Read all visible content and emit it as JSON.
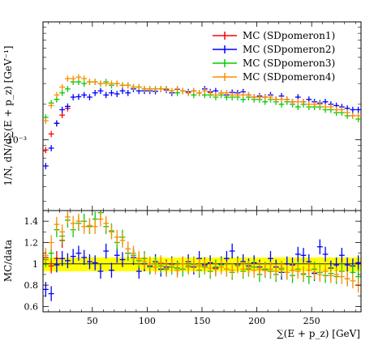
{
  "chart_data": [
    {
      "type": "scatter",
      "panel": "main",
      "ylabel": "1/N, dN/d∑(E + p_z) [GeV⁻¹]",
      "xlim": [
        5,
        295
      ],
      "ylim_decades": [
        -3.6,
        -2.0
      ],
      "yscale": "log",
      "y_tick_labels": [
        {
          "value": 0.001,
          "text": "10⁻³"
        }
      ],
      "legend_position": "top-right",
      "series": [
        {
          "name": "MC (SDpomeron1)",
          "color": "#ff0000",
          "x": [
            7.5,
            12.5,
            17.5,
            22.5,
            27.5
          ],
          "values": [
            0.00082,
            0.00112,
            0.00138,
            0.00162,
            0.00185
          ]
        },
        {
          "name": "MC (SDpomeron2)",
          "color": "#0000ff",
          "x": [
            7.5,
            12.5,
            17.5,
            22.5,
            27.5,
            32.5,
            37.5,
            42.5,
            47.5,
            52.5,
            57.5,
            62.5,
            67.5,
            72.5,
            77.5,
            82.5,
            87.5,
            92.5,
            97.5,
            102.5,
            107.5,
            112.5,
            117.5,
            122.5,
            127.5,
            132.5,
            137.5,
            142.5,
            147.5,
            152.5,
            157.5,
            162.5,
            167.5,
            172.5,
            177.5,
            182.5,
            187.5,
            192.5,
            197.5,
            202.5,
            207.5,
            212.5,
            217.5,
            222.5,
            227.5,
            232.5,
            237.5,
            242.5,
            247.5,
            252.5,
            257.5,
            262.5,
            267.5,
            272.5,
            277.5,
            282.5,
            287.5,
            292.5
          ],
          "values": [
            0.0006,
            0.00085,
            0.00138,
            0.0018,
            0.00192,
            0.0023,
            0.00232,
            0.0024,
            0.0023,
            0.0025,
            0.0026,
            0.0024,
            0.0025,
            0.00245,
            0.0026,
            0.0025,
            0.0027,
            0.0026,
            0.0026,
            0.0026,
            0.00258,
            0.0027,
            0.00265,
            0.0025,
            0.00268,
            0.0026,
            0.00255,
            0.0026,
            0.0025,
            0.0027,
            0.00255,
            0.0026,
            0.0025,
            0.0024,
            0.00252,
            0.0025,
            0.00255,
            0.0024,
            0.0023,
            0.00235,
            0.0023,
            0.0024,
            0.0022,
            0.00235,
            0.0022,
            0.0021,
            0.0023,
            0.0021,
            0.0022,
            0.0021,
            0.00205,
            0.0021,
            0.002,
            0.00195,
            0.0019,
            0.00185,
            0.0018,
            0.0018
          ]
        },
        {
          "name": "MC (SDpomeron3)",
          "color": "#00cc00",
          "x": [
            7.5,
            12.5,
            17.5,
            22.5,
            27.5,
            32.5,
            37.5,
            42.5,
            47.5,
            52.5,
            57.5,
            62.5,
            67.5,
            72.5,
            77.5,
            82.5,
            87.5,
            92.5,
            97.5,
            102.5,
            107.5,
            112.5,
            117.5,
            122.5,
            127.5,
            132.5,
            137.5,
            142.5,
            147.5,
            152.5,
            157.5,
            162.5,
            167.5,
            172.5,
            177.5,
            182.5,
            187.5,
            192.5,
            197.5,
            202.5,
            207.5,
            212.5,
            217.5,
            222.5,
            227.5,
            232.5,
            237.5,
            242.5,
            247.5,
            252.5,
            257.5,
            262.5,
            267.5,
            272.5,
            277.5,
            282.5,
            287.5,
            292.5
          ],
          "values": [
            0.00155,
            0.00205,
            0.0022,
            0.0025,
            0.0027,
            0.0031,
            0.0031,
            0.003,
            0.0031,
            0.0031,
            0.003,
            0.0031,
            0.0029,
            0.003,
            0.0029,
            0.0029,
            0.0028,
            0.0028,
            0.0027,
            0.0027,
            0.0027,
            0.0027,
            0.0027,
            0.0026,
            0.0025,
            0.0026,
            0.0025,
            0.0024,
            0.0025,
            0.0024,
            0.0024,
            0.0023,
            0.0024,
            0.0023,
            0.0023,
            0.0023,
            0.0022,
            0.0023,
            0.0022,
            0.0022,
            0.0021,
            0.0022,
            0.0021,
            0.002,
            0.0021,
            0.002,
            0.0019,
            0.002,
            0.0019,
            0.0019,
            0.0019,
            0.0018,
            0.0018,
            0.0017,
            0.0017,
            0.0016,
            0.0016,
            0.0015
          ]
        },
        {
          "name": "MC (SDpomeron4)",
          "color": "#ff8c00",
          "x": [
            7.5,
            12.5,
            17.5,
            22.5,
            27.5,
            32.5,
            37.5,
            42.5,
            47.5,
            52.5,
            57.5,
            62.5,
            67.5,
            72.5,
            77.5,
            82.5,
            87.5,
            92.5,
            97.5,
            102.5,
            107.5,
            112.5,
            117.5,
            122.5,
            127.5,
            132.5,
            137.5,
            142.5,
            147.5,
            152.5,
            157.5,
            162.5,
            167.5,
            172.5,
            177.5,
            182.5,
            187.5,
            192.5,
            197.5,
            202.5,
            207.5,
            212.5,
            217.5,
            222.5,
            227.5,
            232.5,
            237.5,
            242.5,
            247.5,
            252.5,
            257.5,
            262.5,
            267.5,
            272.5,
            277.5,
            282.5,
            287.5,
            292.5
          ],
          "values": [
            0.00145,
            0.00195,
            0.0024,
            0.0028,
            0.0033,
            0.0033,
            0.0034,
            0.0033,
            0.0031,
            0.0031,
            0.003,
            0.003,
            0.003,
            0.003,
            0.0029,
            0.0029,
            0.0028,
            0.0028,
            0.0027,
            0.0027,
            0.0027,
            0.0027,
            0.0027,
            0.0026,
            0.0027,
            0.0026,
            0.0025,
            0.0026,
            0.0025,
            0.0026,
            0.0025,
            0.0024,
            0.0025,
            0.0025,
            0.0024,
            0.0024,
            0.0024,
            0.0024,
            0.0023,
            0.0023,
            0.0023,
            0.0023,
            0.0022,
            0.0022,
            0.0022,
            0.0021,
            0.0021,
            0.0021,
            0.002,
            0.002,
            0.002,
            0.0019,
            0.0019,
            0.0018,
            0.0018,
            0.0017,
            0.0016,
            0.0016
          ]
        }
      ]
    },
    {
      "type": "scatter",
      "panel": "ratio",
      "xlabel": "∑(E + p_z) [GeV]",
      "ylabel": "MC/data",
      "xlim": [
        5,
        295
      ],
      "ylim": [
        0.55,
        1.5
      ],
      "x_ticks": [
        50,
        100,
        150,
        200,
        250
      ],
      "y_ticks": [
        0.6,
        0.8,
        1,
        1.2,
        1.4
      ],
      "y_tick_labels": [
        "0.6",
        "0.8",
        "1",
        "1.2",
        "1.4"
      ],
      "band": {
        "color": "#ffff00",
        "lower": 0.93,
        "upper": 1.06
      },
      "series": [
        {
          "name": "MC (SDpomeron1)",
          "color": "#ff0000",
          "x": [
            7.5,
            12.5,
            17.5,
            22.5
          ],
          "values": [
            1.06,
            0.98,
            1.05,
            1.22
          ]
        },
        {
          "name": "MC (SDpomeron2)",
          "color": "#0000ff",
          "x": [
            7.5,
            12.5,
            17.5,
            22.5,
            27.5,
            32.5,
            37.5,
            42.5,
            47.5,
            52.5,
            57.5,
            62.5,
            67.5,
            72.5,
            77.5,
            82.5,
            87.5,
            92.5,
            97.5,
            102.5,
            107.5,
            112.5,
            117.5,
            122.5,
            127.5,
            132.5,
            137.5,
            142.5,
            147.5,
            152.5,
            157.5,
            162.5,
            167.5,
            172.5,
            177.5,
            182.5,
            187.5,
            192.5,
            197.5,
            202.5,
            207.5,
            212.5,
            217.5,
            222.5,
            227.5,
            232.5,
            237.5,
            242.5,
            247.5,
            252.5,
            257.5,
            262.5,
            267.5,
            272.5,
            277.5,
            282.5,
            287.5,
            292.5
          ],
          "values": [
            0.76,
            0.72,
            0.99,
            1.05,
            1.03,
            1.07,
            1.1,
            1.06,
            1.02,
            1.01,
            0.93,
            1.12,
            0.94,
            1.08,
            1.04,
            1.1,
            1.06,
            0.93,
            1.0,
            0.98,
            1.02,
            0.95,
            0.97,
            1.0,
            0.96,
            1.0,
            1.02,
            0.97,
            1.05,
            0.99,
            1.01,
            0.96,
            1.0,
            1.05,
            1.12,
            1.0,
            1.02,
            0.98,
            1.01,
            0.97,
            0.94,
            1.05,
            0.97,
            0.92,
            1.0,
            0.99,
            1.09,
            1.08,
            1.02,
            0.91,
            1.16,
            1.09,
            0.96,
            0.99,
            1.08,
            0.99,
            0.98,
            1.01
          ]
        },
        {
          "name": "MC (SDpomeron3)",
          "color": "#00cc00",
          "x": [
            7.5,
            12.5,
            17.5,
            22.5,
            27.5,
            32.5,
            37.5,
            42.5,
            47.5,
            52.5,
            57.5,
            62.5,
            67.5,
            72.5,
            77.5,
            82.5,
            87.5,
            92.5,
            97.5,
            102.5,
            107.5,
            112.5,
            117.5,
            122.5,
            127.5,
            132.5,
            137.5,
            142.5,
            147.5,
            152.5,
            157.5,
            162.5,
            167.5,
            172.5,
            177.5,
            182.5,
            187.5,
            192.5,
            197.5,
            202.5,
            207.5,
            212.5,
            217.5,
            222.5,
            227.5,
            232.5,
            237.5,
            242.5,
            247.5,
            252.5,
            257.5,
            262.5,
            267.5,
            272.5,
            277.5,
            282.5,
            287.5,
            292.5
          ],
          "values": [
            1.04,
            1.1,
            1.32,
            1.26,
            1.41,
            1.32,
            1.38,
            1.4,
            1.35,
            1.42,
            1.48,
            1.35,
            1.31,
            1.2,
            1.25,
            1.1,
            1.08,
            1.03,
            1.05,
            0.97,
            1.0,
            0.98,
            0.95,
            0.97,
            0.96,
            0.95,
            0.98,
            1.0,
            0.94,
            0.97,
            0.93,
            0.97,
            0.99,
            0.95,
            0.92,
            0.99,
            0.93,
            0.95,
            0.97,
            0.9,
            0.95,
            0.93,
            0.9,
            0.95,
            0.92,
            0.89,
            0.95,
            0.9,
            0.88,
            0.95,
            0.92,
            0.89,
            0.91,
            0.88,
            0.93,
            0.86,
            0.92,
            0.88
          ]
        },
        {
          "name": "MC (SDpomeron4)",
          "color": "#ff8c00",
          "x": [
            7.5,
            12.5,
            17.5,
            22.5,
            27.5,
            32.5,
            37.5,
            42.5,
            47.5,
            52.5,
            57.5,
            62.5,
            67.5,
            72.5,
            77.5,
            82.5,
            87.5,
            92.5,
            97.5,
            102.5,
            107.5,
            112.5,
            117.5,
            122.5,
            127.5,
            132.5,
            137.5,
            142.5,
            147.5,
            152.5,
            157.5,
            162.5,
            167.5,
            172.5,
            177.5,
            182.5,
            187.5,
            192.5,
            197.5,
            202.5,
            207.5,
            212.5,
            217.5,
            222.5,
            227.5,
            232.5,
            237.5,
            242.5,
            247.5,
            252.5,
            257.5,
            262.5,
            267.5,
            272.5,
            277.5,
            282.5,
            287.5,
            292.5
          ],
          "values": [
            1.08,
            1.2,
            1.37,
            1.3,
            1.44,
            1.38,
            1.4,
            1.35,
            1.36,
            1.35,
            1.42,
            1.38,
            1.3,
            1.25,
            1.22,
            1.14,
            1.1,
            1.05,
            1.02,
            1.0,
            0.97,
            1.01,
            0.96,
            0.99,
            0.94,
            1.0,
            0.97,
            0.99,
            0.98,
            0.98,
            0.96,
            0.95,
            0.97,
            0.95,
            0.94,
            0.98,
            0.95,
            0.96,
            0.94,
            0.95,
            0.94,
            0.95,
            0.93,
            0.96,
            0.92,
            0.94,
            0.93,
            0.91,
            0.94,
            0.92,
            0.9,
            0.93,
            0.89,
            0.9,
            0.88,
            0.86,
            0.84,
            0.8
          ]
        }
      ]
    }
  ]
}
